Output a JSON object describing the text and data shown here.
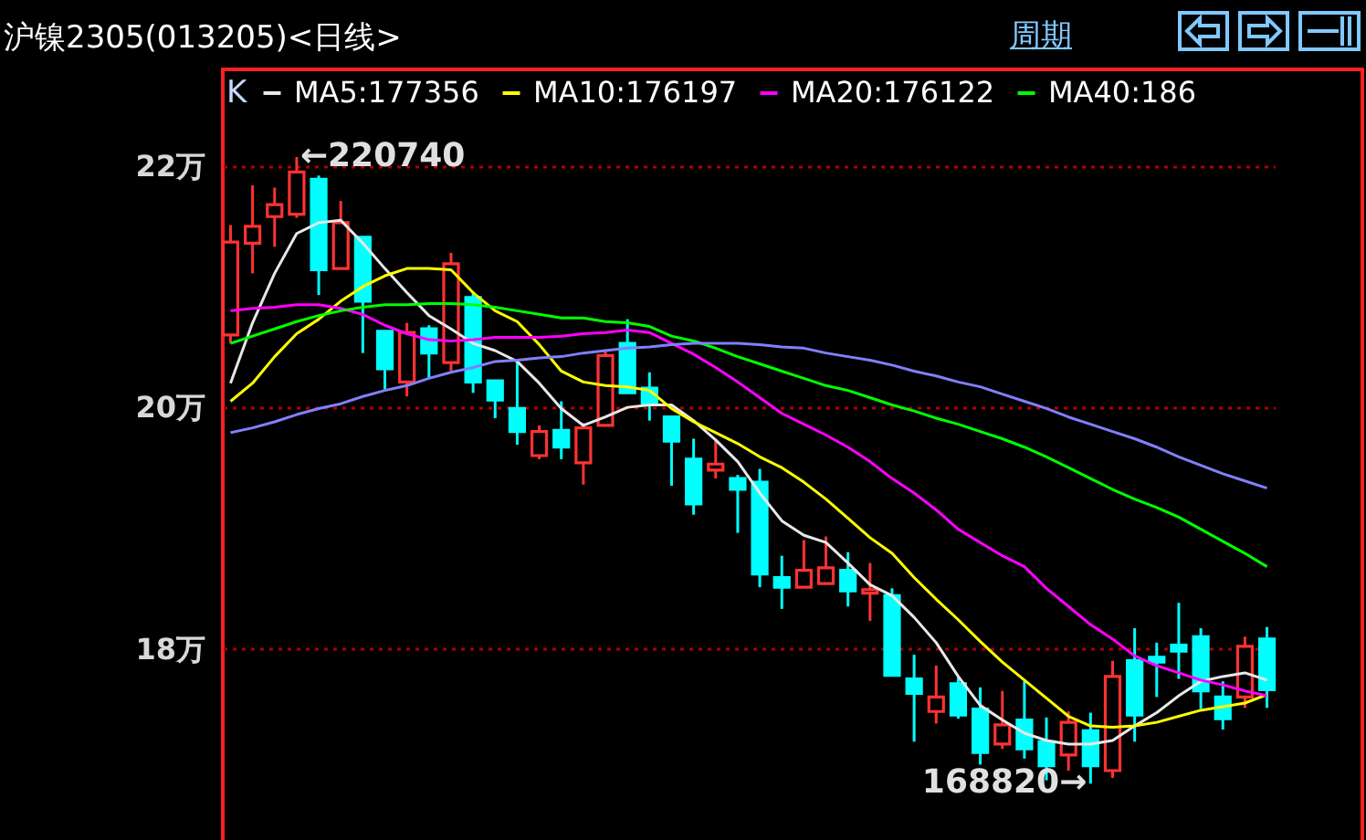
{
  "chart_data": {
    "type": "candlestick",
    "title": "沪镍2305(013205)<日线>",
    "categories": [
      null,
      null,
      null,
      null,
      null,
      null,
      null,
      null,
      null,
      null,
      null,
      null,
      null,
      null,
      null,
      null,
      null,
      null,
      null,
      null,
      null,
      null,
      null,
      null,
      null,
      null,
      null,
      null,
      null,
      null,
      null,
      null,
      null,
      null,
      null,
      null,
      null,
      null,
      null,
      null,
      null,
      null,
      null,
      null,
      null,
      null,
      null,
      null
    ],
    "ohlc": [
      [
        20.6,
        21.51,
        20.53,
        21.37
      ],
      [
        21.36,
        21.84,
        21.11,
        21.5
      ],
      [
        21.58,
        21.82,
        21.33,
        21.68
      ],
      [
        21.6,
        22.074,
        21.57,
        21.95
      ],
      [
        21.89,
        21.92,
        20.93,
        21.14
      ],
      [
        21.15,
        21.71,
        21.15,
        21.53
      ],
      [
        21.41,
        21.41,
        20.45,
        20.88
      ],
      [
        20.63,
        20.63,
        20.15,
        20.32
      ],
      [
        20.21,
        20.7,
        20.09,
        20.62
      ],
      [
        20.65,
        20.68,
        20.24,
        20.45
      ],
      [
        20.37,
        21.28,
        20.3,
        21.19
      ],
      [
        20.91,
        20.96,
        20.12,
        20.21
      ],
      [
        20.22,
        20.22,
        19.91,
        20.06
      ],
      [
        19.99,
        20.37,
        19.69,
        19.8
      ],
      [
        19.6,
        19.85,
        19.57,
        19.8
      ],
      [
        19.81,
        20.05,
        19.57,
        19.67
      ],
      [
        19.54,
        19.87,
        19.36,
        19.83
      ],
      [
        19.85,
        20.48,
        19.85,
        20.43
      ],
      [
        20.53,
        20.73,
        20.12,
        20.12
      ],
      [
        20.16,
        20.29,
        19.89,
        20.02
      ],
      [
        19.92,
        19.92,
        19.35,
        19.72
      ],
      [
        19.57,
        19.74,
        19.11,
        19.2
      ],
      [
        19.48,
        19.72,
        19.41,
        19.53
      ],
      [
        19.41,
        19.44,
        18.96,
        19.32
      ],
      [
        19.38,
        19.49,
        18.51,
        18.62
      ],
      [
        18.59,
        18.77,
        18.33,
        18.51
      ],
      [
        18.51,
        18.9,
        18.51,
        18.65
      ],
      [
        18.54,
        18.93,
        18.54,
        18.67
      ],
      [
        18.65,
        18.8,
        18.35,
        18.48
      ],
      [
        18.46,
        18.71,
        18.23,
        18.49
      ],
      [
        18.44,
        18.5,
        17.78,
        17.78
      ],
      [
        17.75,
        17.95,
        17.23,
        17.63
      ],
      [
        17.48,
        17.86,
        17.38,
        17.6
      ],
      [
        17.71,
        17.76,
        17.42,
        17.45
      ],
      [
        17.5,
        17.68,
        17.04,
        17.14
      ],
      [
        17.21,
        17.65,
        17.17,
        17.37
      ],
      [
        17.41,
        17.73,
        17.09,
        17.17
      ],
      [
        17.23,
        17.43,
        16.91,
        17.03
      ],
      [
        17.12,
        17.48,
        16.99,
        17.39
      ],
      [
        17.32,
        17.47,
        16.882,
        17.03
      ],
      [
        16.99,
        17.9,
        16.93,
        17.77
      ],
      [
        17.9,
        18.17,
        17.23,
        17.45
      ],
      [
        17.93,
        18.05,
        17.6,
        17.89
      ],
      [
        18.03,
        18.38,
        17.75,
        17.98
      ],
      [
        18.1,
        18.17,
        17.5,
        17.65
      ],
      [
        17.6,
        17.73,
        17.33,
        17.42
      ],
      [
        17.6,
        18.1,
        17.51,
        18.02
      ],
      [
        18.08,
        18.18,
        17.51,
        17.66
      ]
    ],
    "colors": [
      "#ff3232",
      "#ff3232",
      "#ff3232",
      "#ff3232",
      "#00ffff",
      "#ff3232",
      "#00ffff",
      "#00ffff",
      "#ff3232",
      "#00ffff",
      "#ff3232",
      "#00ffff",
      "#00ffff",
      "#00ffff",
      "#ff3232",
      "#00ffff",
      "#ff3232",
      "#ff3232",
      "#00ffff",
      "#00ffff",
      "#00ffff",
      "#00ffff",
      "#ff3232",
      "#00ffff",
      "#00ffff",
      "#00ffff",
      "#ff3232",
      "#ff3232",
      "#00ffff",
      "#ff3232",
      "#00ffff",
      "#00ffff",
      "#ff3232",
      "#00ffff",
      "#00ffff",
      "#ff3232",
      "#00ffff",
      "#00ffff",
      "#ff3232",
      "#00ffff",
      "#ff3232",
      "#00ffff",
      "#00ffff",
      "#00ffff",
      "#00ffff",
      "#00ffff",
      "#ff3232",
      "#00ffff"
    ],
    "series": [
      {
        "name": "MA5:177356",
        "type": "line",
        "color": "#e8e8e8",
        "values": [
          20.2,
          20.7,
          21.11,
          21.44,
          21.53,
          21.55,
          21.36,
          21.15,
          20.95,
          20.76,
          20.65,
          20.53,
          20.47,
          20.38,
          20.2,
          19.99,
          19.85,
          19.92,
          20.0,
          20.02,
          20.02,
          19.89,
          19.73,
          19.55,
          19.29,
          19.06,
          18.94,
          18.88,
          18.71,
          18.53,
          18.44,
          18.26,
          18.05,
          17.77,
          17.53,
          17.41,
          17.3,
          17.24,
          17.21,
          17.21,
          17.24,
          17.36,
          17.47,
          17.61,
          17.73,
          17.77,
          17.8,
          17.74
        ]
      },
      {
        "name": "MA10:176197",
        "type": "line",
        "color": "#ffff00",
        "values": [
          20.05,
          20.2,
          20.42,
          20.61,
          20.73,
          20.88,
          21.0,
          21.09,
          21.15,
          21.15,
          21.14,
          20.95,
          20.8,
          20.71,
          20.52,
          20.3,
          20.21,
          20.18,
          20.17,
          20.14,
          19.99,
          19.88,
          19.79,
          19.7,
          19.59,
          19.5,
          19.38,
          19.24,
          19.08,
          18.92,
          18.79,
          18.59,
          18.41,
          18.24,
          18.06,
          17.89,
          17.74,
          17.59,
          17.44,
          17.36,
          17.35,
          17.36,
          17.39,
          17.44,
          17.49,
          17.52,
          17.55,
          17.62
        ]
      },
      {
        "name": "MA20:176122",
        "type": "line",
        "color": "#ff00ff",
        "values": [
          20.8,
          20.82,
          20.83,
          20.85,
          20.85,
          20.82,
          20.77,
          20.68,
          20.61,
          20.56,
          20.55,
          20.56,
          20.58,
          20.58,
          20.58,
          20.59,
          20.61,
          20.62,
          20.64,
          20.62,
          20.53,
          20.44,
          20.33,
          20.21,
          20.08,
          19.95,
          19.86,
          19.77,
          19.67,
          19.55,
          19.41,
          19.29,
          19.15,
          18.99,
          18.88,
          18.77,
          18.68,
          18.5,
          18.35,
          18.2,
          18.08,
          17.94,
          17.86,
          17.8,
          17.74,
          17.7,
          17.65,
          17.61
        ]
      },
      {
        "name": "MA40:186",
        "type": "line",
        "color": "#00ff00",
        "values": [
          20.53,
          20.59,
          20.65,
          20.71,
          20.76,
          20.8,
          20.83,
          20.85,
          20.85,
          20.86,
          20.86,
          20.85,
          20.83,
          20.8,
          20.77,
          20.74,
          20.74,
          20.71,
          20.7,
          20.67,
          20.59,
          20.55,
          20.49,
          20.42,
          20.36,
          20.3,
          20.24,
          20.18,
          20.14,
          20.08,
          20.02,
          19.97,
          19.91,
          19.86,
          19.8,
          19.74,
          19.67,
          19.59,
          19.5,
          19.41,
          19.32,
          19.24,
          19.17,
          19.09,
          18.99,
          18.89,
          18.79,
          18.68
        ]
      },
      {
        "type": "line",
        "color": "#8080ff",
        "values": [
          19.79,
          19.83,
          19.88,
          19.94,
          19.99,
          20.03,
          20.09,
          20.14,
          20.18,
          20.24,
          20.29,
          20.33,
          20.38,
          20.39,
          20.41,
          20.42,
          20.45,
          20.47,
          20.49,
          20.5,
          20.52,
          20.53,
          20.53,
          20.53,
          20.52,
          20.5,
          20.49,
          20.45,
          20.42,
          20.39,
          20.35,
          20.3,
          20.26,
          20.21,
          20.17,
          20.11,
          20.05,
          19.99,
          19.92,
          19.86,
          19.8,
          19.74,
          19.67,
          19.59,
          19.52,
          19.45,
          19.39,
          19.33
        ]
      }
    ],
    "legend_title": "K",
    "legend": "top left",
    "ylim": [
      16.4,
      22.8
    ],
    "yticks": [
      {
        "value": 18,
        "label": "18万"
      },
      {
        "value": 20,
        "label": "20万"
      },
      {
        "value": 22,
        "label": "22万"
      }
    ],
    "grid": "y",
    "tick_labels": "y",
    "annotations": [
      "←220740",
      "168820→",
      "周期"
    ]
  }
}
